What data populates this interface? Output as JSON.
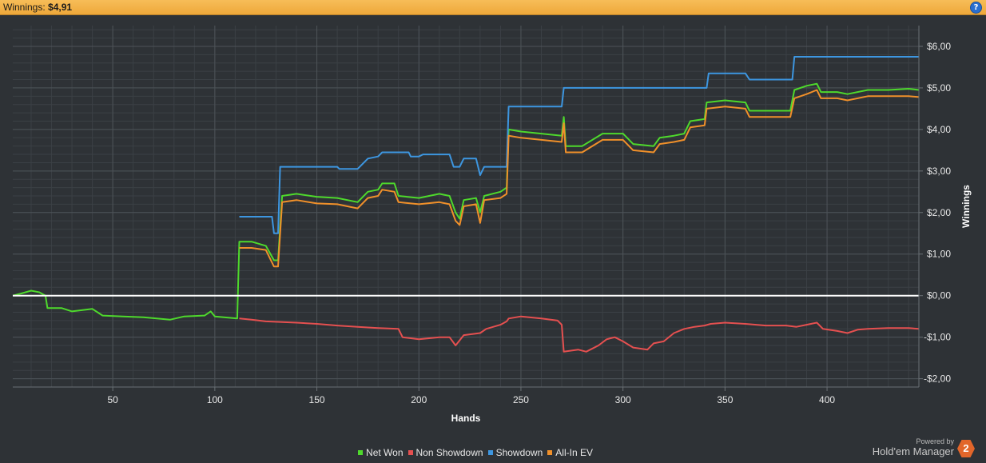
{
  "header": {
    "label": "Winnings:",
    "value": "$4,91"
  },
  "help_icon": "?",
  "brand": {
    "powered_by": "Powered by",
    "name": "Hold'em Manager",
    "logo_text": "2"
  },
  "chart_data": {
    "type": "line",
    "xlabel": "Hands",
    "ylabel": "Winnings",
    "xlim": [
      1,
      445
    ],
    "ylim": [
      -2.2,
      6.5
    ],
    "x_ticks": [
      50,
      100,
      150,
      200,
      250,
      300,
      350,
      400
    ],
    "y_ticks": [
      6,
      5,
      4,
      3,
      2,
      1,
      0,
      -1,
      -2
    ],
    "y_tick_labels": [
      "$6,00",
      "$5,00",
      "$4,00",
      "$3,00",
      "$2,00",
      "$1,00",
      "$0,00",
      "-$1,00",
      "-$2,00"
    ],
    "grid": true,
    "legend_position": "bottom",
    "series": [
      {
        "name": "Net Won",
        "color": "#4ed92c",
        "points": [
          [
            1,
            0
          ],
          [
            5,
            0.05
          ],
          [
            10,
            0.12
          ],
          [
            14,
            0.08
          ],
          [
            17,
            0
          ],
          [
            18,
            -0.3
          ],
          [
            25,
            -0.3
          ],
          [
            30,
            -0.38
          ],
          [
            40,
            -0.32
          ],
          [
            45,
            -0.48
          ],
          [
            55,
            -0.5
          ],
          [
            65,
            -0.52
          ],
          [
            78,
            -0.58
          ],
          [
            85,
            -0.5
          ],
          [
            95,
            -0.48
          ],
          [
            98,
            -0.38
          ],
          [
            100,
            -0.5
          ],
          [
            111,
            -0.55
          ],
          [
            112,
            1.3
          ],
          [
            118,
            1.3
          ],
          [
            125,
            1.2
          ],
          [
            129,
            0.85
          ],
          [
            131,
            0.85
          ],
          [
            133,
            2.4
          ],
          [
            140,
            2.45
          ],
          [
            150,
            2.38
          ],
          [
            160,
            2.35
          ],
          [
            170,
            2.25
          ],
          [
            175,
            2.5
          ],
          [
            180,
            2.55
          ],
          [
            182,
            2.7
          ],
          [
            188,
            2.7
          ],
          [
            190,
            2.4
          ],
          [
            200,
            2.35
          ],
          [
            210,
            2.45
          ],
          [
            215,
            2.4
          ],
          [
            218,
            2.0
          ],
          [
            220,
            1.85
          ],
          [
            222,
            2.3
          ],
          [
            228,
            2.35
          ],
          [
            230,
            2.0
          ],
          [
            232,
            2.4
          ],
          [
            240,
            2.5
          ],
          [
            243,
            2.6
          ],
          [
            244,
            4.0
          ],
          [
            250,
            3.95
          ],
          [
            260,
            3.9
          ],
          [
            270,
            3.85
          ],
          [
            271,
            4.3
          ],
          [
            272,
            3.6
          ],
          [
            280,
            3.6
          ],
          [
            290,
            3.9
          ],
          [
            300,
            3.9
          ],
          [
            305,
            3.65
          ],
          [
            315,
            3.6
          ],
          [
            318,
            3.8
          ],
          [
            325,
            3.85
          ],
          [
            330,
            3.9
          ],
          [
            333,
            4.2
          ],
          [
            340,
            4.25
          ],
          [
            341,
            4.65
          ],
          [
            350,
            4.7
          ],
          [
            360,
            4.65
          ],
          [
            362,
            4.45
          ],
          [
            370,
            4.45
          ],
          [
            382,
            4.45
          ],
          [
            384,
            4.95
          ],
          [
            390,
            5.05
          ],
          [
            395,
            5.1
          ],
          [
            397,
            4.9
          ],
          [
            405,
            4.9
          ],
          [
            410,
            4.85
          ],
          [
            420,
            4.95
          ],
          [
            430,
            4.95
          ],
          [
            440,
            4.98
          ],
          [
            445,
            4.95
          ]
        ]
      },
      {
        "name": "Non Showdown",
        "color": "#e55050",
        "points": [
          [
            112,
            -0.55
          ],
          [
            118,
            -0.58
          ],
          [
            125,
            -0.62
          ],
          [
            140,
            -0.65
          ],
          [
            150,
            -0.68
          ],
          [
            160,
            -0.72
          ],
          [
            170,
            -0.75
          ],
          [
            180,
            -0.78
          ],
          [
            190,
            -0.8
          ],
          [
            192,
            -1.0
          ],
          [
            200,
            -1.05
          ],
          [
            210,
            -1.0
          ],
          [
            215,
            -1.0
          ],
          [
            218,
            -1.2
          ],
          [
            222,
            -0.95
          ],
          [
            230,
            -0.9
          ],
          [
            233,
            -0.8
          ],
          [
            240,
            -0.7
          ],
          [
            243,
            -0.62
          ],
          [
            244,
            -0.55
          ],
          [
            250,
            -0.5
          ],
          [
            260,
            -0.55
          ],
          [
            268,
            -0.6
          ],
          [
            270,
            -0.7
          ],
          [
            271,
            -1.35
          ],
          [
            278,
            -1.3
          ],
          [
            282,
            -1.35
          ],
          [
            288,
            -1.2
          ],
          [
            292,
            -1.05
          ],
          [
            296,
            -1.0
          ],
          [
            300,
            -1.1
          ],
          [
            305,
            -1.25
          ],
          [
            312,
            -1.3
          ],
          [
            315,
            -1.15
          ],
          [
            320,
            -1.1
          ],
          [
            325,
            -0.9
          ],
          [
            330,
            -0.8
          ],
          [
            335,
            -0.75
          ],
          [
            340,
            -0.72
          ],
          [
            343,
            -0.68
          ],
          [
            350,
            -0.65
          ],
          [
            360,
            -0.68
          ],
          [
            370,
            -0.72
          ],
          [
            380,
            -0.72
          ],
          [
            385,
            -0.75
          ],
          [
            390,
            -0.7
          ],
          [
            395,
            -0.65
          ],
          [
            398,
            -0.8
          ],
          [
            405,
            -0.85
          ],
          [
            410,
            -0.9
          ],
          [
            415,
            -0.82
          ],
          [
            420,
            -0.8
          ],
          [
            430,
            -0.78
          ],
          [
            440,
            -0.78
          ],
          [
            445,
            -0.8
          ]
        ]
      },
      {
        "name": "Showdown",
        "color": "#3d96e0",
        "points": [
          [
            112,
            1.9
          ],
          [
            128,
            1.9
          ],
          [
            129,
            1.5
          ],
          [
            131,
            1.5
          ],
          [
            132,
            3.1
          ],
          [
            160,
            3.1
          ],
          [
            161,
            3.05
          ],
          [
            170,
            3.05
          ],
          [
            175,
            3.3
          ],
          [
            180,
            3.35
          ],
          [
            182,
            3.45
          ],
          [
            195,
            3.45
          ],
          [
            196,
            3.35
          ],
          [
            200,
            3.35
          ],
          [
            202,
            3.4
          ],
          [
            210,
            3.4
          ],
          [
            215,
            3.4
          ],
          [
            217,
            3.1
          ],
          [
            220,
            3.1
          ],
          [
            222,
            3.3
          ],
          [
            228,
            3.3
          ],
          [
            230,
            2.9
          ],
          [
            232,
            3.1
          ],
          [
            240,
            3.1
          ],
          [
            243,
            3.1
          ],
          [
            244,
            4.55
          ],
          [
            260,
            4.55
          ],
          [
            270,
            4.55
          ],
          [
            271,
            5.0
          ],
          [
            300,
            5.0
          ],
          [
            320,
            5.0
          ],
          [
            341,
            5.0
          ],
          [
            342,
            5.35
          ],
          [
            360,
            5.35
          ],
          [
            362,
            5.2
          ],
          [
            370,
            5.2
          ],
          [
            383,
            5.2
          ],
          [
            384,
            5.75
          ],
          [
            445,
            5.75
          ]
        ]
      },
      {
        "name": "All-In EV",
        "color": "#f0902a",
        "points": [
          [
            112,
            1.15
          ],
          [
            118,
            1.15
          ],
          [
            125,
            1.1
          ],
          [
            129,
            0.7
          ],
          [
            131,
            0.7
          ],
          [
            133,
            2.25
          ],
          [
            140,
            2.3
          ],
          [
            150,
            2.22
          ],
          [
            160,
            2.2
          ],
          [
            170,
            2.1
          ],
          [
            175,
            2.35
          ],
          [
            180,
            2.4
          ],
          [
            182,
            2.55
          ],
          [
            188,
            2.5
          ],
          [
            190,
            2.25
          ],
          [
            200,
            2.2
          ],
          [
            210,
            2.25
          ],
          [
            215,
            2.2
          ],
          [
            218,
            1.8
          ],
          [
            220,
            1.7
          ],
          [
            222,
            2.15
          ],
          [
            228,
            2.2
          ],
          [
            230,
            1.75
          ],
          [
            232,
            2.3
          ],
          [
            240,
            2.35
          ],
          [
            243,
            2.45
          ],
          [
            244,
            3.85
          ],
          [
            250,
            3.8
          ],
          [
            260,
            3.75
          ],
          [
            270,
            3.7
          ],
          [
            271,
            4.15
          ],
          [
            272,
            3.45
          ],
          [
            280,
            3.45
          ],
          [
            290,
            3.75
          ],
          [
            300,
            3.75
          ],
          [
            305,
            3.5
          ],
          [
            315,
            3.45
          ],
          [
            318,
            3.65
          ],
          [
            325,
            3.7
          ],
          [
            330,
            3.75
          ],
          [
            333,
            4.05
          ],
          [
            340,
            4.1
          ],
          [
            341,
            4.5
          ],
          [
            350,
            4.55
          ],
          [
            360,
            4.5
          ],
          [
            362,
            4.3
          ],
          [
            370,
            4.3
          ],
          [
            382,
            4.3
          ],
          [
            384,
            4.75
          ],
          [
            390,
            4.85
          ],
          [
            395,
            4.95
          ],
          [
            397,
            4.75
          ],
          [
            405,
            4.75
          ],
          [
            410,
            4.7
          ],
          [
            420,
            4.8
          ],
          [
            430,
            4.8
          ],
          [
            440,
            4.8
          ],
          [
            445,
            4.78
          ]
        ]
      }
    ],
    "zero_line_color": "#ffffff"
  }
}
